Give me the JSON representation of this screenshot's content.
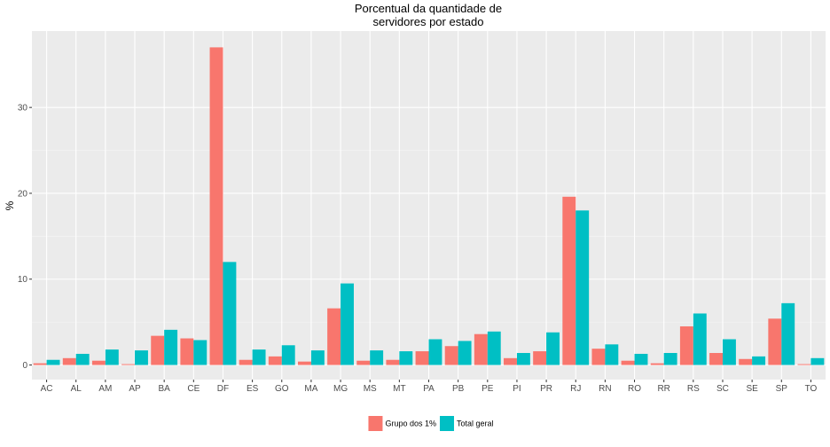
{
  "chart_data": {
    "type": "bar",
    "title": [
      "Porcentual da quantidade de",
      "servidores por estado"
    ],
    "xlabel": "",
    "ylabel": "%",
    "ylim": [
      -1.7,
      38.9
    ],
    "yticks": [
      0,
      10,
      20,
      30
    ],
    "grid": true,
    "legend_position": "bottom",
    "categories": [
      "AC",
      "AL",
      "AM",
      "AP",
      "BA",
      "CE",
      "DF",
      "ES",
      "GO",
      "MA",
      "MG",
      "MS",
      "MT",
      "PA",
      "PB",
      "PE",
      "PI",
      "PR",
      "RJ",
      "RN",
      "RO",
      "RR",
      "RS",
      "SC",
      "SE",
      "SP",
      "TO"
    ],
    "series": [
      {
        "name": "Grupo dos 1%",
        "color": "#F8766D",
        "values": [
          0.2,
          0.8,
          0.5,
          0.1,
          3.4,
          3.1,
          37.0,
          0.6,
          1.0,
          0.4,
          6.6,
          0.5,
          0.6,
          1.6,
          2.2,
          3.6,
          0.8,
          1.6,
          19.6,
          1.9,
          0.5,
          0.2,
          4.5,
          1.4,
          0.7,
          5.4,
          0.1
        ]
      },
      {
        "name": "Total geral",
        "color": "#00BFC4",
        "values": [
          0.6,
          1.3,
          1.8,
          1.7,
          4.1,
          2.9,
          12.0,
          1.8,
          2.3,
          1.7,
          9.5,
          1.7,
          1.6,
          3.0,
          2.8,
          3.9,
          1.4,
          3.8,
          18.0,
          2.4,
          1.3,
          1.4,
          6.0,
          3.0,
          1.0,
          7.2,
          0.8
        ]
      }
    ]
  }
}
